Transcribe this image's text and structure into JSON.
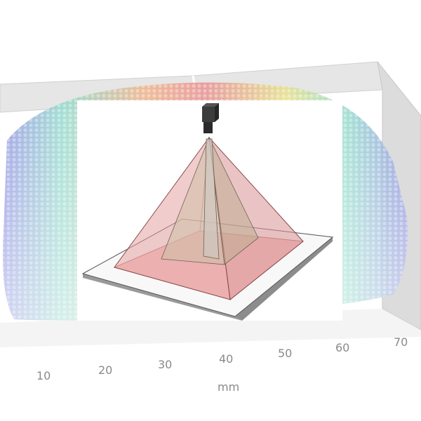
{
  "background_plot": {
    "x_axis": {
      "title": "mm",
      "ticks": [
        "10",
        "20",
        "30",
        "40",
        "50",
        "60",
        "70"
      ]
    },
    "colormap": [
      "#8b8fe0",
      "#7fb4e6",
      "#8ed8c9",
      "#b7e38f",
      "#e6e08a",
      "#f0b48a",
      "#e99090"
    ]
  },
  "inset_diagram": {
    "description_items": [
      "camera",
      "field-of-view-pyramid",
      "inner-pyramid",
      "center-beam",
      "base-plate"
    ],
    "colors": {
      "fov_face": "#e8a0a0",
      "fov_edge": "#8a4a4a",
      "inner_face": "#cdbfa6",
      "plate_top": "#f8f8f8",
      "plate_side": "#9a9a9a",
      "camera": "#303030"
    }
  }
}
